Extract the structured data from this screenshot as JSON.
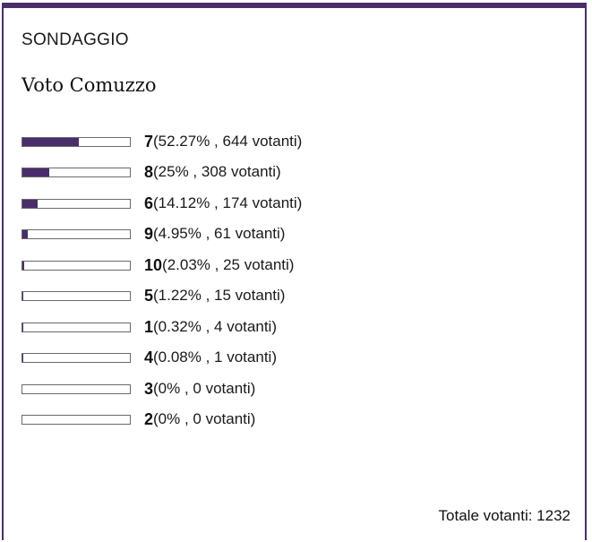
{
  "poll": {
    "label": "SONDAGGIO",
    "question": "Voto Comuzzo",
    "accent_color": "#4a2e6b",
    "options": [
      {
        "value": "7",
        "stats": "(52.27% , 644 votanti)",
        "percent": 52.27
      },
      {
        "value": "8",
        "stats": "(25% , 308 votanti)",
        "percent": 25
      },
      {
        "value": "6",
        "stats": "(14.12% , 174 votanti)",
        "percent": 14.12
      },
      {
        "value": "9",
        "stats": "(4.95% , 61 votanti)",
        "percent": 4.95
      },
      {
        "value": "10",
        "stats": "(2.03% , 25 votanti)",
        "percent": 2.03
      },
      {
        "value": "5",
        "stats": "(1.22% , 15 votanti)",
        "percent": 1.22
      },
      {
        "value": "1",
        "stats": "(0.32% , 4 votanti)",
        "percent": 0.32
      },
      {
        "value": "4",
        "stats": "(0.08% , 1 votanti)",
        "percent": 0.08
      },
      {
        "value": "3",
        "stats": "(0% , 0 votanti)",
        "percent": 0
      },
      {
        "value": "2",
        "stats": "(0% , 0 votanti)",
        "percent": 0
      }
    ],
    "total_text": "Totale votanti: 1232"
  }
}
